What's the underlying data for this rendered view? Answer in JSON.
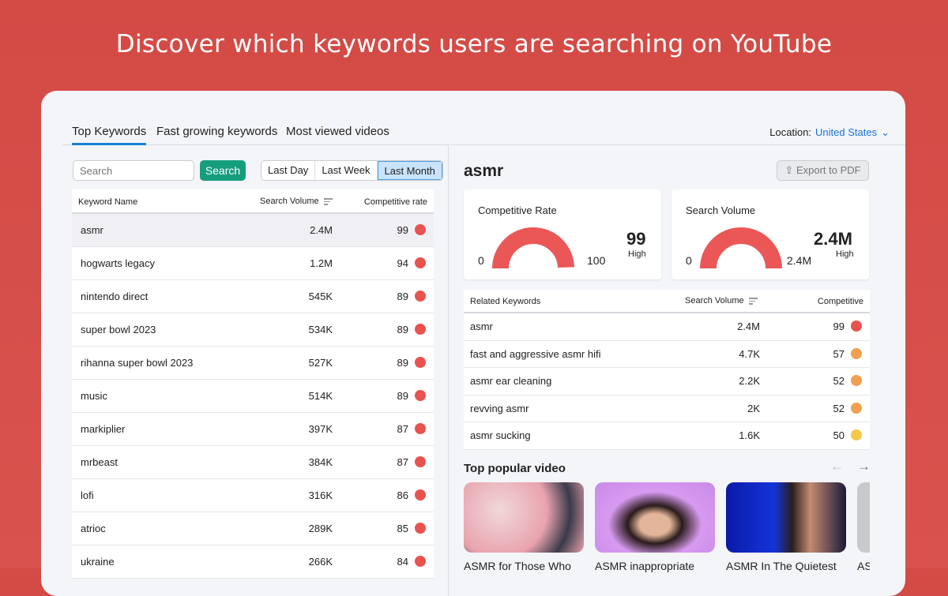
{
  "hero": "Discover which keywords users are searching on YouTube",
  "tabs": [
    "Top Keywords",
    "Fast growing keywords",
    "Most viewed videos"
  ],
  "location": {
    "label": "Location:",
    "value": "United States"
  },
  "search": {
    "placeholder": "Search",
    "button": "Search"
  },
  "periods": [
    "Last Day",
    "Last Week",
    "Last Month"
  ],
  "selected_period": "Last Month",
  "keywords_table": {
    "headers": [
      "Keyword Name",
      "Search Volume",
      "Competitive rate"
    ],
    "rows": [
      [
        "asmr",
        "2.4M",
        "99",
        "#e8534f"
      ],
      [
        "hogwarts legacy",
        "1.2M",
        "94",
        "#e8534f"
      ],
      [
        "nintendo direct",
        "545K",
        "89",
        "#e8534f"
      ],
      [
        "super bowl 2023",
        "534K",
        "89",
        "#e8534f"
      ],
      [
        "rihanna super bowl 2023",
        "527K",
        "89",
        "#e8534f"
      ],
      [
        "music",
        "514K",
        "89",
        "#e8534f"
      ],
      [
        "markiplier",
        "397K",
        "87",
        "#e8534f"
      ],
      [
        "mrbeast",
        "384K",
        "87",
        "#e8534f"
      ],
      [
        "lofi",
        "316K",
        "86",
        "#e8534f"
      ],
      [
        "atrioc",
        "289K",
        "85",
        "#e8534f"
      ],
      [
        "ukraine",
        "266K",
        "84",
        "#e8534f"
      ]
    ]
  },
  "detail": {
    "keyword": "asmr",
    "export": "Export to PDF",
    "competitive": {
      "label": "Competitive Rate",
      "min": "0",
      "max": "100",
      "value": "99",
      "level": "High",
      "fraction": 0.99
    },
    "volume": {
      "label": "Search Volume",
      "min": "0",
      "max": "2.4M",
      "value": "2.4M",
      "level": "High",
      "fraction": 1.0
    }
  },
  "related": {
    "headers": [
      "Related Keywords",
      "Search Volume",
      "Competitive"
    ],
    "rows": [
      [
        "asmr",
        "2.4M",
        "99",
        "#e8534f"
      ],
      [
        "fast and aggressive asmr hifi",
        "4.7K",
        "57",
        "#f0a050"
      ],
      [
        "asmr ear cleaning",
        "2.2K",
        "52",
        "#f0a050"
      ],
      [
        "revving asmr",
        "2K",
        "52",
        "#f0a050"
      ],
      [
        "asmr sucking",
        "1.6K",
        "50",
        "#f5c84a"
      ]
    ]
  },
  "videos": {
    "title": "Top popular video",
    "items": [
      "ASMR for Those Who",
      "ASMR inappropriate",
      "ASMR In The Quietest",
      "AS"
    ]
  },
  "colors": {
    "accent": "#1a7fd8",
    "search_button": "#159e7c",
    "gauge": "#eb5757"
  }
}
